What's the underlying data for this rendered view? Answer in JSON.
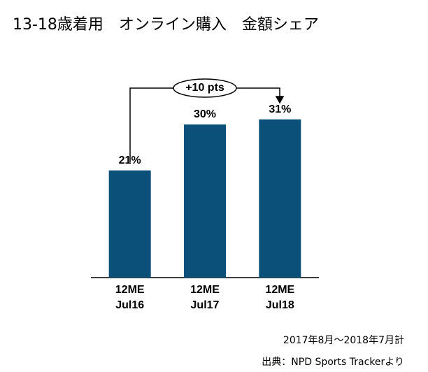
{
  "chart_data": {
    "type": "bar",
    "title": "13-18歳着用　オンライン購入　金額シェア",
    "categories": [
      [
        "12ME",
        "Jul16"
      ],
      [
        "12ME",
        "Jul17"
      ],
      [
        "12ME",
        "Jul18"
      ]
    ],
    "values": [
      21,
      30,
      31
    ],
    "value_labels": [
      "21%",
      "30%",
      "31%"
    ],
    "color": "#0b5078",
    "ylim": [
      0,
      40
    ],
    "annotation": "+10 pts",
    "notes": [
      "2017年8月～2018年7月計",
      "出典：NPD Sports Trackerより"
    ]
  }
}
